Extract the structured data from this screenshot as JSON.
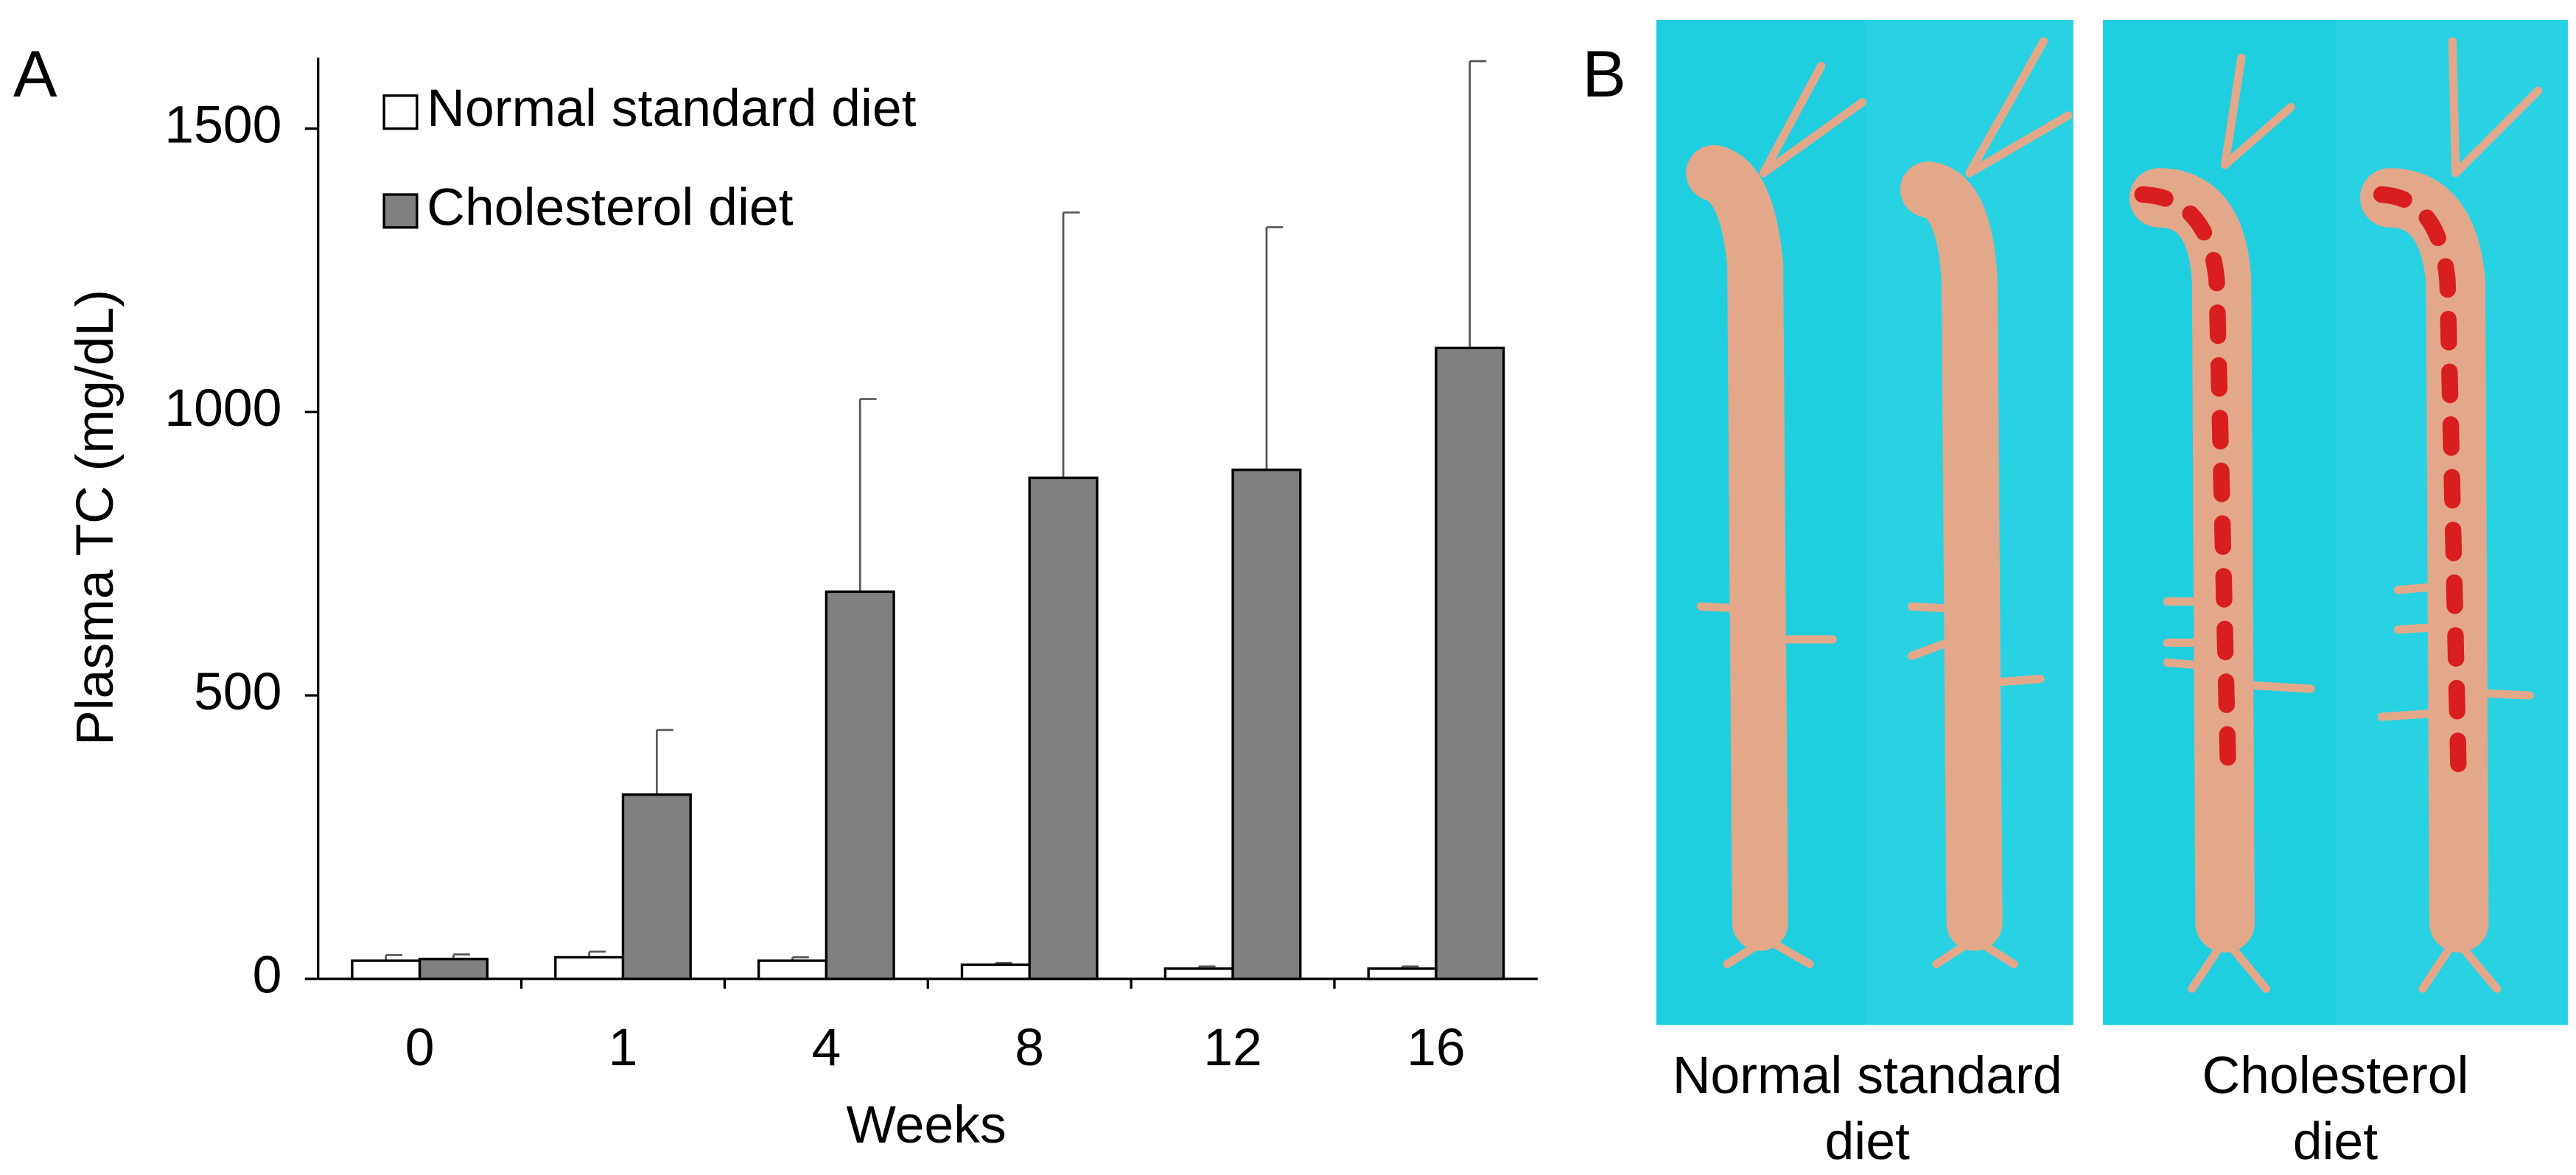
{
  "chart_data": {
    "type": "bar",
    "ylabel": "Plasma TC (mg/dL)",
    "xlabel": "Weeks",
    "categories": [
      "0",
      "1",
      "4",
      "8",
      "12",
      "16"
    ],
    "series": [
      {
        "name": "Normal standard diet",
        "color": "#ffffff",
        "values": [
          32,
          38,
          32,
          25,
          18,
          18
        ],
        "errors": [
          10,
          10,
          6,
          3,
          4,
          4
        ]
      },
      {
        "name": "Cholesterol diet",
        "color": "#808080",
        "values": [
          35,
          325,
          683,
          884,
          898,
          1113
        ],
        "errors": [
          8,
          114,
          340,
          468,
          428,
          506
        ]
      }
    ],
    "ylim": [
      0,
      1625
    ],
    "yticks": [
      0,
      500,
      1000,
      1500
    ],
    "grid": false,
    "legend": "upper left"
  },
  "panel_labels": [
    "A",
    "B"
  ],
  "panel_b": {
    "captions": [
      [
        "Normal standard",
        "diet"
      ],
      [
        "Cholesterol",
        "diet"
      ]
    ]
  }
}
